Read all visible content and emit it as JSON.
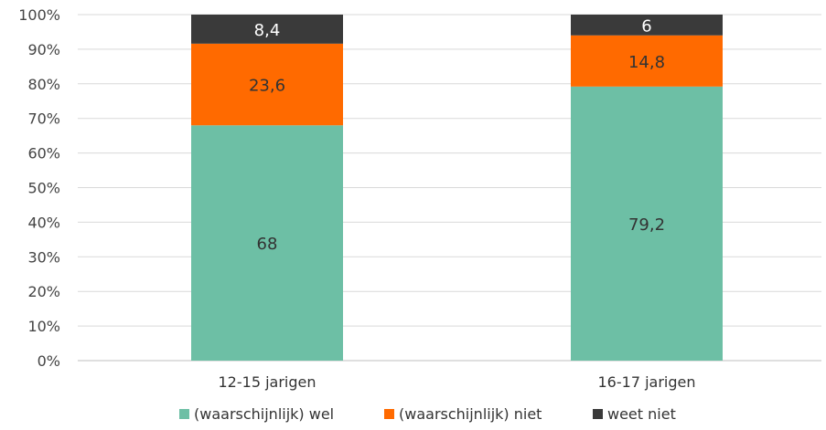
{
  "chart_data": {
    "type": "bar",
    "stacked": true,
    "categories": [
      "12-15 jarigen",
      "16-17 jarigen"
    ],
    "series": [
      {
        "name": "(waarschijnlijk) wel",
        "color": "#6dbfa5",
        "label_color": "#333333",
        "values": [
          68,
          79.2
        ],
        "labels": [
          "68",
          "79,2"
        ]
      },
      {
        "name": "(waarschijnlijk) niet",
        "color": "#ff6a00",
        "label_color": "#333333",
        "values": [
          23.6,
          14.8
        ],
        "labels": [
          "23,6",
          "14,8"
        ]
      },
      {
        "name": "weet niet",
        "color": "#3a3a3a",
        "label_color": "#ffffff",
        "values": [
          8.4,
          6
        ],
        "labels": [
          "8,4",
          "6"
        ]
      }
    ],
    "ylim": [
      0,
      100
    ],
    "y_ticks": [
      "0%",
      "10%",
      "20%",
      "30%",
      "40%",
      "50%",
      "60%",
      "70%",
      "80%",
      "90%",
      "100%"
    ],
    "grid": true,
    "legend_position": "bottom"
  }
}
